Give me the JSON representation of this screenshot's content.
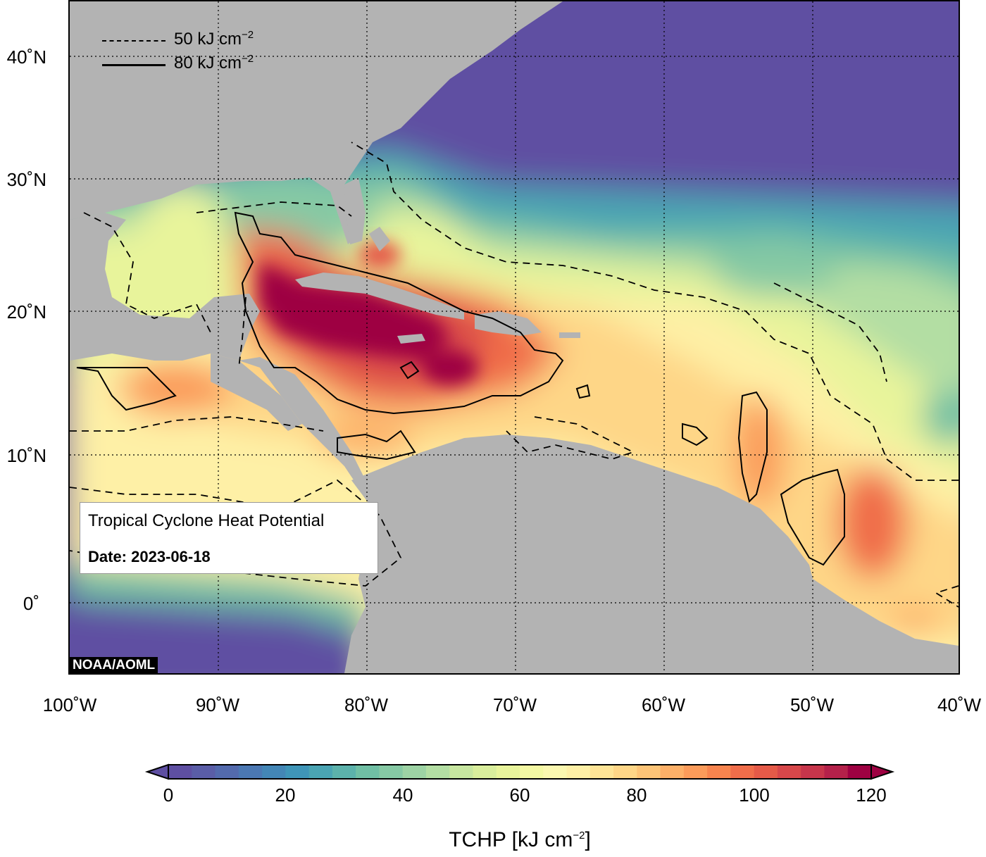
{
  "map": {
    "title": "Tropical Cyclone Heat Potential",
    "date_label": "Date: 2023-06-18",
    "credit": "NOAA/AOML",
    "lat_labels": [
      {
        "value": 40,
        "label": "40˚N"
      },
      {
        "value": 30,
        "label": "30˚N"
      },
      {
        "value": 20,
        "label": "20˚N"
      },
      {
        "value": 10,
        "label": "10˚N"
      },
      {
        "value": 0,
        "label": "0˚"
      }
    ],
    "lon_labels": [
      {
        "value": -100,
        "label": "100˚W"
      },
      {
        "value": -90,
        "label": "90˚W"
      },
      {
        "value": -80,
        "label": "80˚W"
      },
      {
        "value": -70,
        "label": "70˚W"
      },
      {
        "value": -60,
        "label": "60˚W"
      },
      {
        "value": -50,
        "label": "50˚W"
      },
      {
        "value": -40,
        "label": "40˚W"
      }
    ],
    "lon_range": [
      -100,
      -40
    ],
    "lat_range": [
      -5,
      45
    ],
    "legend": [
      {
        "style": "dashed",
        "label": "50 kJ cm",
        "exp": "−2"
      },
      {
        "style": "solid",
        "label": "80 kJ cm",
        "exp": "−2"
      }
    ],
    "colors": {
      "land": "#b3b3b3",
      "cold": "#5e4fa2",
      "warmest": "#9e0142"
    }
  },
  "colorbar": {
    "title": "TCHP [kJ cm",
    "title_exp": "−2",
    "title_close": "]",
    "min": 0,
    "max": 120,
    "ticks": [
      "0",
      "20",
      "40",
      "60",
      "80",
      "100",
      "120"
    ],
    "colors": [
      "#5e4fa2",
      "#5a5da7",
      "#536aad",
      "#4b78b3",
      "#4386b6",
      "#3f95b8",
      "#4aa4b3",
      "#5cb2ab",
      "#70bfa4",
      "#86c9a4",
      "#9dd3a4",
      "#b3dea3",
      "#c7e6a0",
      "#d9ee9c",
      "#e8f49b",
      "#f4f9a3",
      "#fbf8b0",
      "#fef0a6",
      "#fee496",
      "#fed687",
      "#fdc477",
      "#fdb068",
      "#fb9b5a",
      "#f7844e",
      "#f06d4a",
      "#e55a48",
      "#d7474a",
      "#c7354b",
      "#b4214a",
      "#9e0142"
    ]
  }
}
